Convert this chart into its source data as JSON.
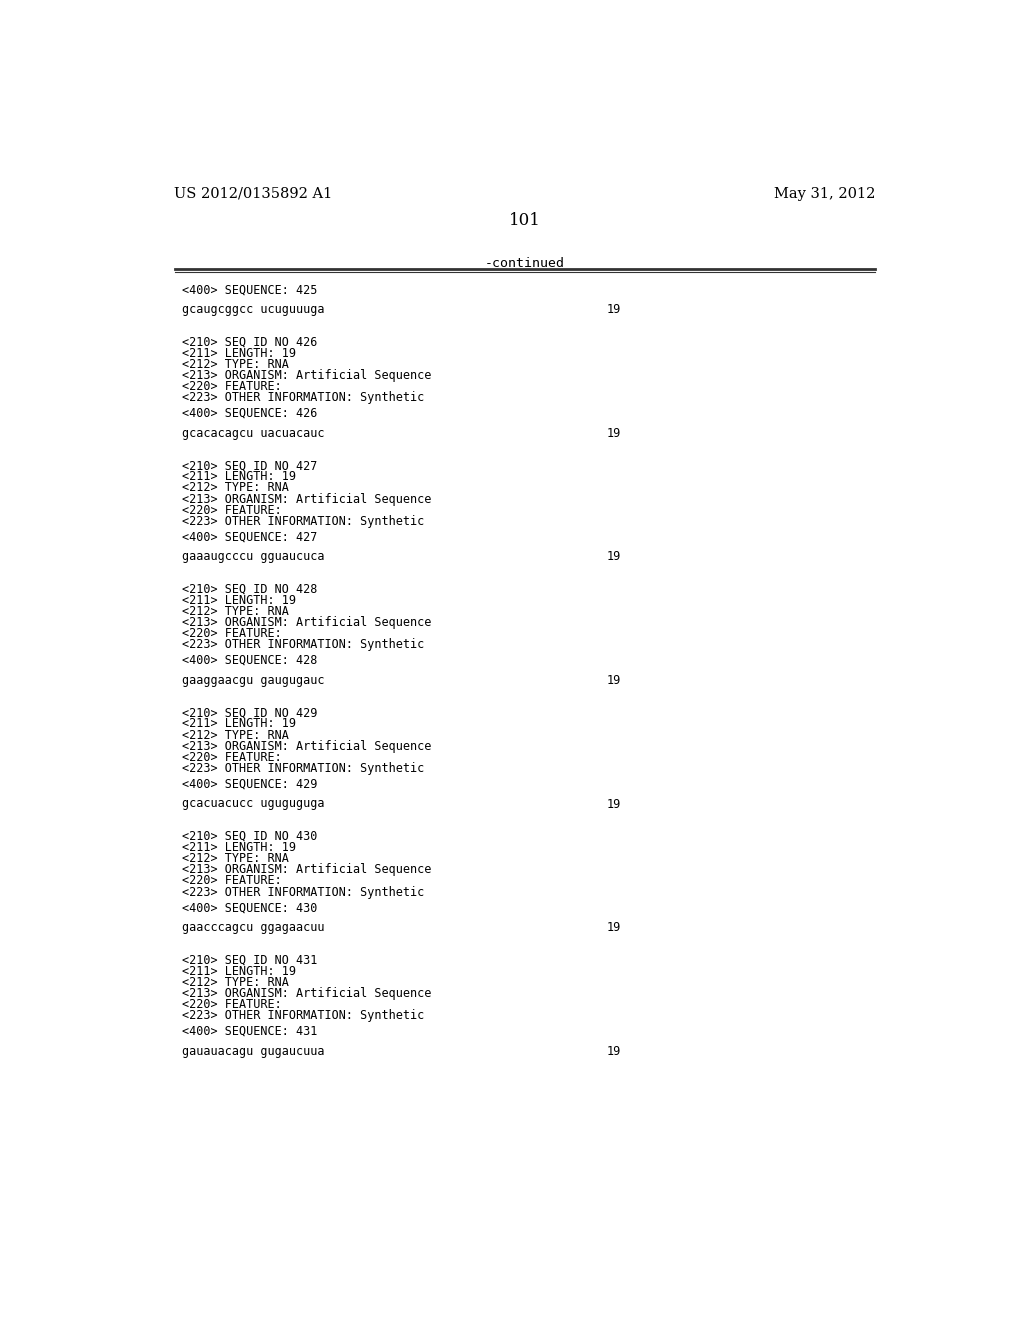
{
  "header_left": "US 2012/0135892 A1",
  "header_right": "May 31, 2012",
  "page_number": "101",
  "continued_text": "-continued",
  "background_color": "#ffffff",
  "text_color": "#000000",
  "line_color": "#333333",
  "mono_fontsize": 8.5,
  "header_fontsize": 10.5,
  "page_fontsize": 12,
  "entries": [
    {
      "seq400": "<400> SEQUENCE: 425",
      "sequence": "gcaugcggcc ucuguuuga",
      "seq_num": "19"
    },
    {
      "seq210": "<210> SEQ ID NO 426",
      "seq211": "<211> LENGTH: 19",
      "seq212": "<212> TYPE: RNA",
      "seq213": "<213> ORGANISM: Artificial Sequence",
      "seq220": "<220> FEATURE:",
      "seq223": "<223> OTHER INFORMATION: Synthetic",
      "seq400": "<400> SEQUENCE: 426",
      "sequence": "gcacacagcu uacuacauc",
      "seq_num": "19"
    },
    {
      "seq210": "<210> SEQ ID NO 427",
      "seq211": "<211> LENGTH: 19",
      "seq212": "<212> TYPE: RNA",
      "seq213": "<213> ORGANISM: Artificial Sequence",
      "seq220": "<220> FEATURE:",
      "seq223": "<223> OTHER INFORMATION: Synthetic",
      "seq400": "<400> SEQUENCE: 427",
      "sequence": "gaaaugcccu gguaucuca",
      "seq_num": "19"
    },
    {
      "seq210": "<210> SEQ ID NO 428",
      "seq211": "<211> LENGTH: 19",
      "seq212": "<212> TYPE: RNA",
      "seq213": "<213> ORGANISM: Artificial Sequence",
      "seq220": "<220> FEATURE:",
      "seq223": "<223> OTHER INFORMATION: Synthetic",
      "seq400": "<400> SEQUENCE: 428",
      "sequence": "gaaggaacgu gaugugauc",
      "seq_num": "19"
    },
    {
      "seq210": "<210> SEQ ID NO 429",
      "seq211": "<211> LENGTH: 19",
      "seq212": "<212> TYPE: RNA",
      "seq213": "<213> ORGANISM: Artificial Sequence",
      "seq220": "<220> FEATURE:",
      "seq223": "<223> OTHER INFORMATION: Synthetic",
      "seq400": "<400> SEQUENCE: 429",
      "sequence": "gcacuacucc uguguguga",
      "seq_num": "19"
    },
    {
      "seq210": "<210> SEQ ID NO 430",
      "seq211": "<211> LENGTH: 19",
      "seq212": "<212> TYPE: RNA",
      "seq213": "<213> ORGANISM: Artificial Sequence",
      "seq220": "<220> FEATURE:",
      "seq223": "<223> OTHER INFORMATION: Synthetic",
      "seq400": "<400> SEQUENCE: 430",
      "sequence": "gaacccagcu ggagaacuu",
      "seq_num": "19"
    },
    {
      "seq210": "<210> SEQ ID NO 431",
      "seq211": "<211> LENGTH: 19",
      "seq212": "<212> TYPE: RNA",
      "seq213": "<213> ORGANISM: Artificial Sequence",
      "seq220": "<220> FEATURE:",
      "seq223": "<223> OTHER INFORMATION: Synthetic",
      "seq400": "<400> SEQUENCE: 431",
      "sequence": "gauauacagu gugaucuua",
      "seq_num": "19"
    }
  ]
}
